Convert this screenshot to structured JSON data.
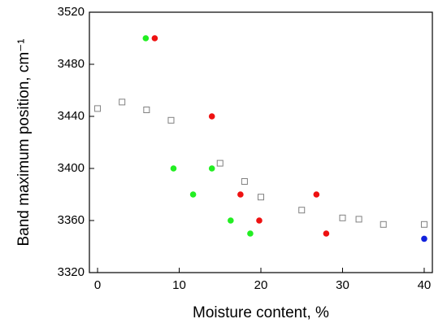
{
  "chart_data": {
    "type": "scatter",
    "x_label": "Moisture content, %",
    "y_label": "Band maximum position, cm⁻¹",
    "xlim": [
      -1,
      41
    ],
    "xticks": [
      0,
      10,
      20,
      30,
      40
    ],
    "ylim": [
      3320,
      3520
    ],
    "yticks": [
      3320,
      3360,
      3400,
      3440,
      3480,
      3520
    ],
    "grid": false,
    "series": [
      {
        "color": "#808080",
        "marker": "open-square",
        "x": [
          0,
          3,
          6,
          9,
          15,
          18,
          20,
          25,
          30,
          32,
          35,
          40
        ],
        "values": [
          3446,
          3451,
          3445,
          3437,
          3404,
          3390,
          3378,
          3368,
          3362,
          3361,
          3357,
          3357
        ]
      },
      {
        "color": "#22ee22",
        "marker": "circle",
        "x": [
          5.9,
          9.3,
          11.7,
          14,
          16.3,
          18.7
        ],
        "values": [
          3500,
          3400,
          3380,
          3400,
          3360,
          3350
        ]
      },
      {
        "color": "#ee1111",
        "marker": "circle",
        "x": [
          7,
          14,
          17.5,
          19.8,
          26.8,
          28
        ],
        "values": [
          3500,
          3440,
          3380,
          3360,
          3380,
          3350
        ]
      },
      {
        "color": "#1122dd",
        "marker": "circle",
        "x": [
          40
        ],
        "values": [
          3346
        ]
      }
    ]
  }
}
